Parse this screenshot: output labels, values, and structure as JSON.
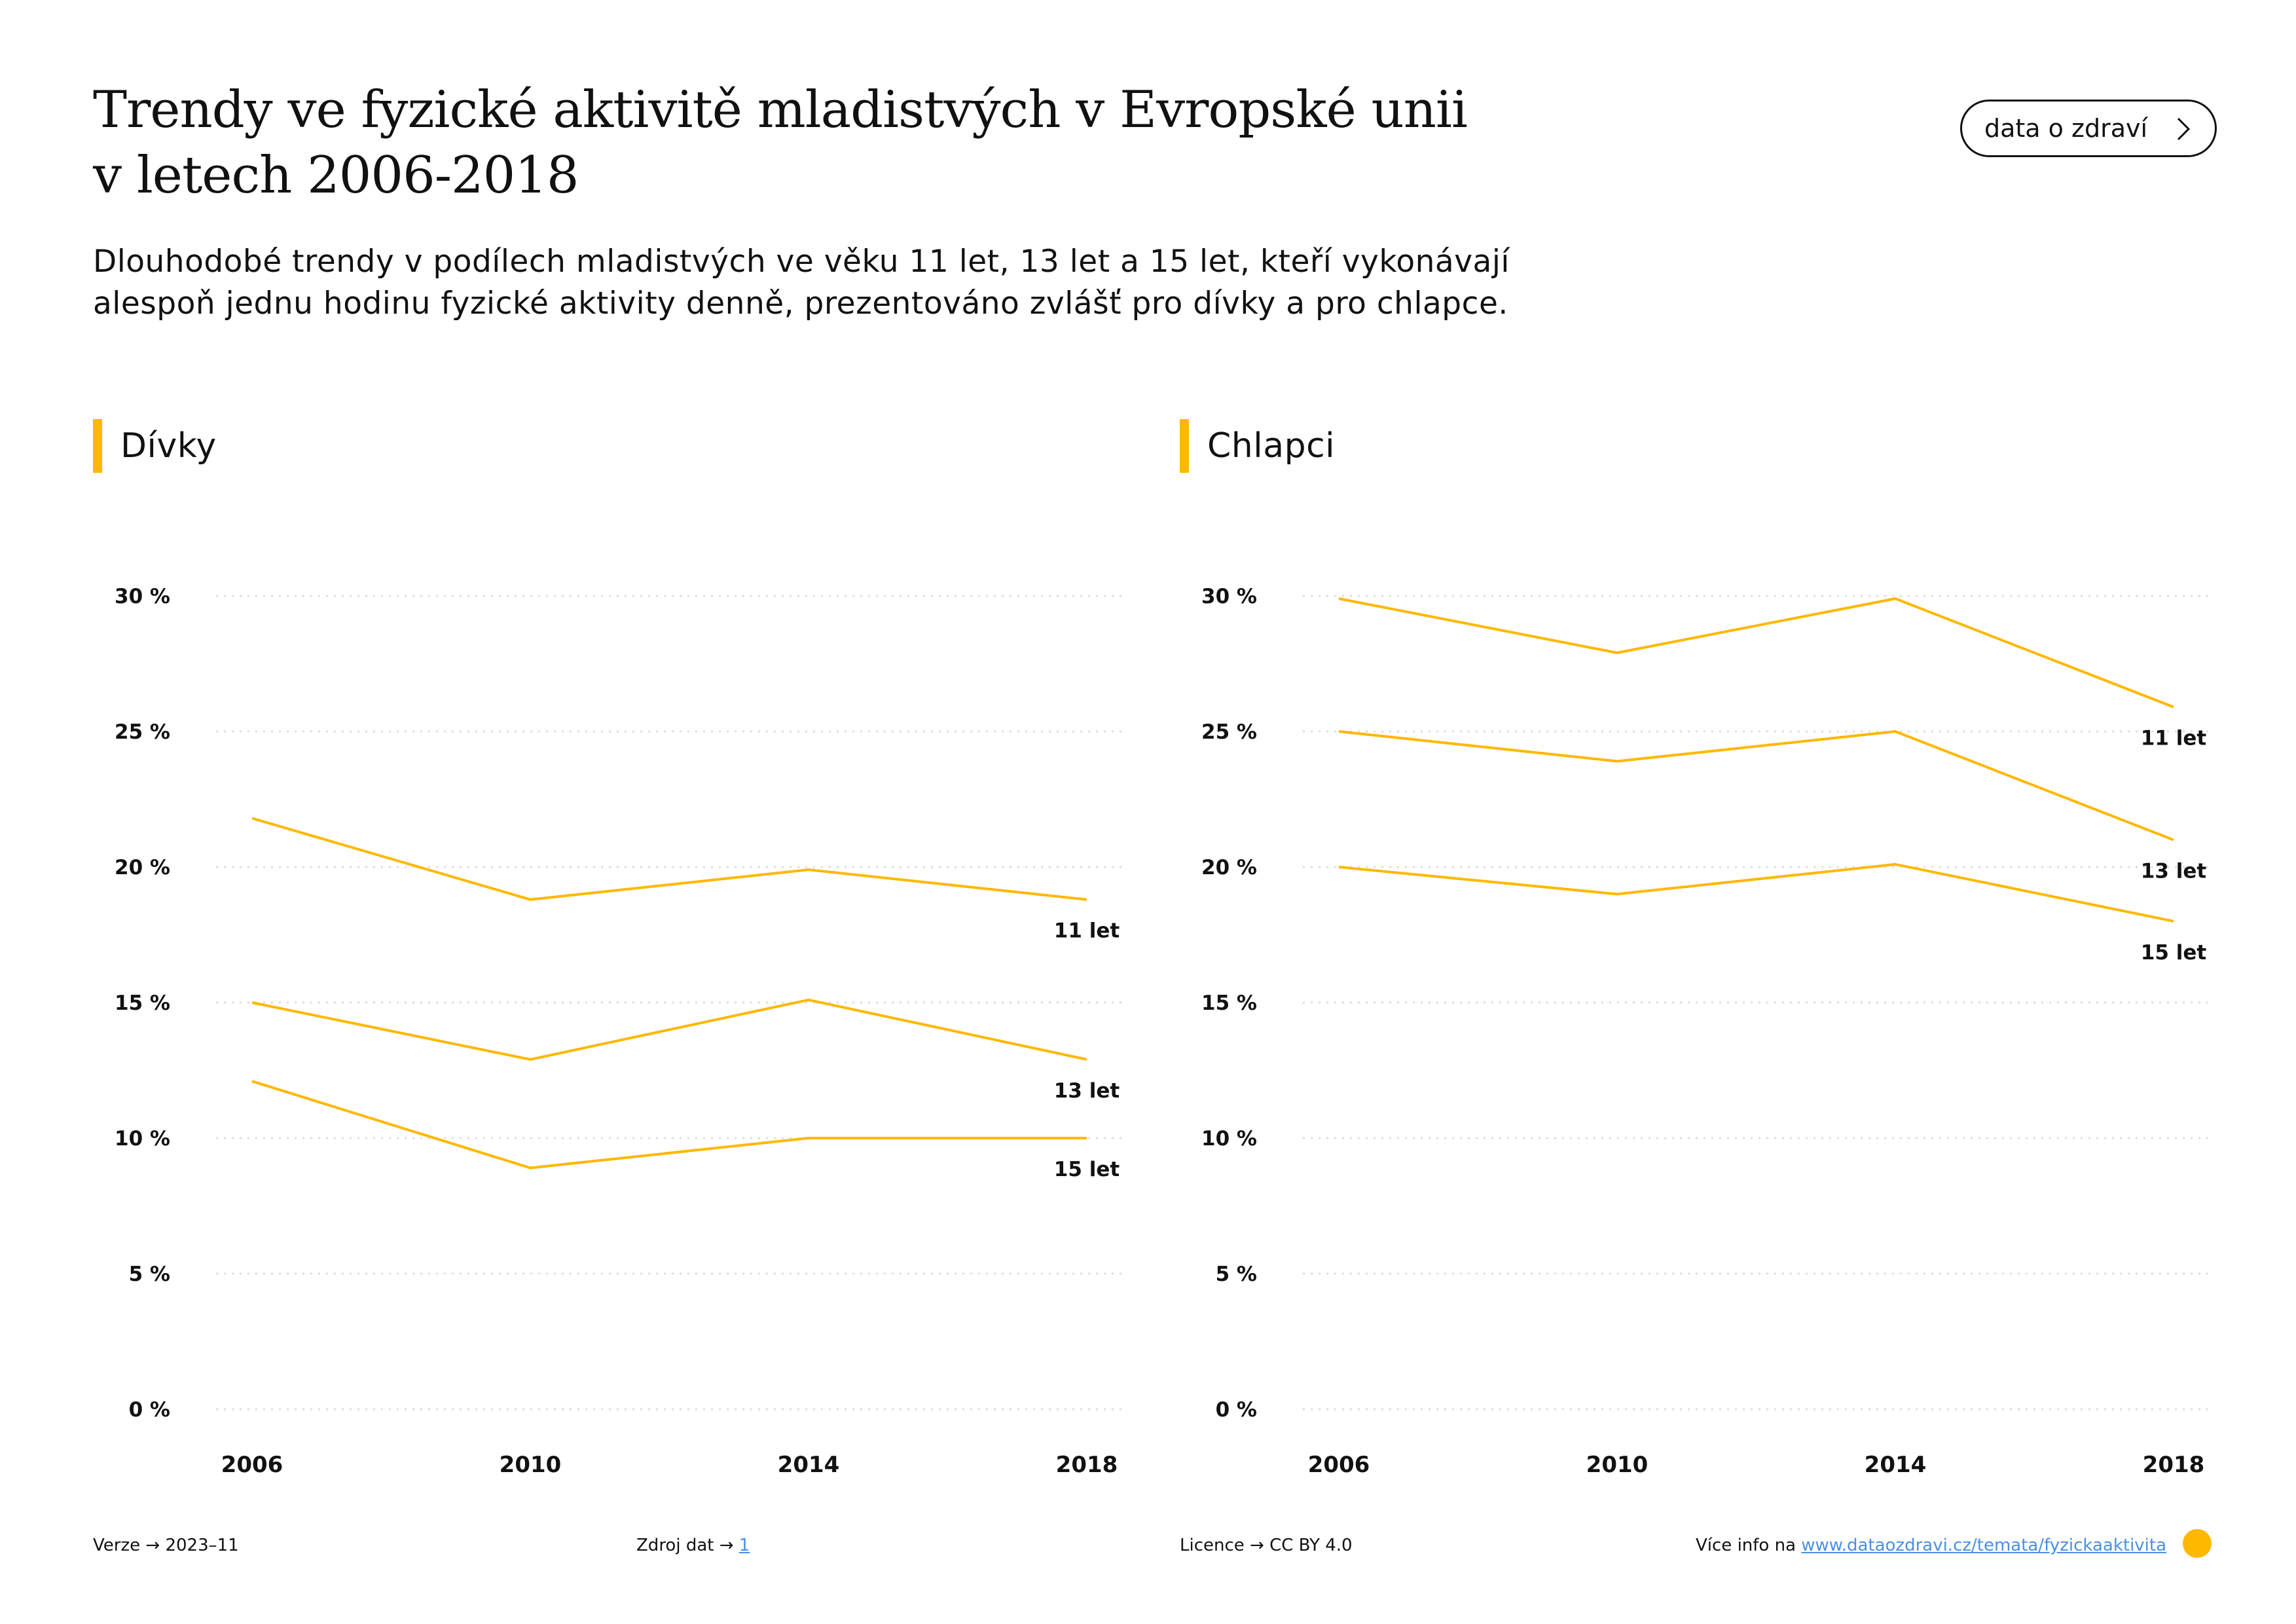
{
  "title_line1": "Trendy ve fyzické aktivitě mladistvých v Evropské unii",
  "title_line2": "v letech 2006-2018",
  "subtitle_line1": "Dlouhodobé trendy v podílech mladistvých ve věku 11 let, 13 let a 15 let, kteří vykonávají",
  "subtitle_line2": "alespoň jednu hodinu fyzické aktivity denně, prezentováno zvlášť pro dívky a pro chlapce.",
  "brand_button": {
    "label": "data o zdraví",
    "icon": "chevron-right-icon"
  },
  "colors": {
    "accent": "#FFB800",
    "grid": "#DDDDDD",
    "text": "#111111",
    "link": "#4A90E2"
  },
  "chart_data": [
    {
      "type": "line",
      "title": "Dívky",
      "x": [
        "2006",
        "2010",
        "2014",
        "2018"
      ],
      "yticks": [
        "0 %",
        "5 %",
        "10 %",
        "15 %",
        "20 %",
        "25 %",
        "30 %"
      ],
      "ylim": [
        0,
        30
      ],
      "grid": true,
      "series": [
        {
          "name": "11 let",
          "values": [
            21.8,
            18.8,
            19.9,
            18.8
          ]
        },
        {
          "name": "13 let",
          "values": [
            15.0,
            12.9,
            15.1,
            12.9
          ]
        },
        {
          "name": "15 let",
          "values": [
            12.1,
            8.9,
            10.0,
            10.0
          ]
        }
      ]
    },
    {
      "type": "line",
      "title": "Chlapci",
      "x": [
        "2006",
        "2010",
        "2014",
        "2018"
      ],
      "yticks": [
        "0 %",
        "5 %",
        "10 %",
        "15 %",
        "20 %",
        "25 %",
        "30 %"
      ],
      "ylim": [
        0,
        30
      ],
      "grid": true,
      "series": [
        {
          "name": "11 let",
          "values": [
            29.9,
            27.9,
            29.9,
            25.9
          ]
        },
        {
          "name": "13 let",
          "values": [
            25.0,
            23.9,
            25.0,
            21.0
          ]
        },
        {
          "name": "15 let",
          "values": [
            20.0,
            19.0,
            20.1,
            18.0
          ]
        }
      ]
    }
  ],
  "footer": {
    "version_label": "Verze",
    "version_value": "2023–11",
    "source_label": "Zdroj dat",
    "source_value": "1",
    "license_label": "Licence",
    "license_value": "CC BY 4.0",
    "info_label": "Více info na",
    "info_link": "www.dataozdravi.cz/temata/fyzickaaktivita",
    "arrow": "→"
  }
}
